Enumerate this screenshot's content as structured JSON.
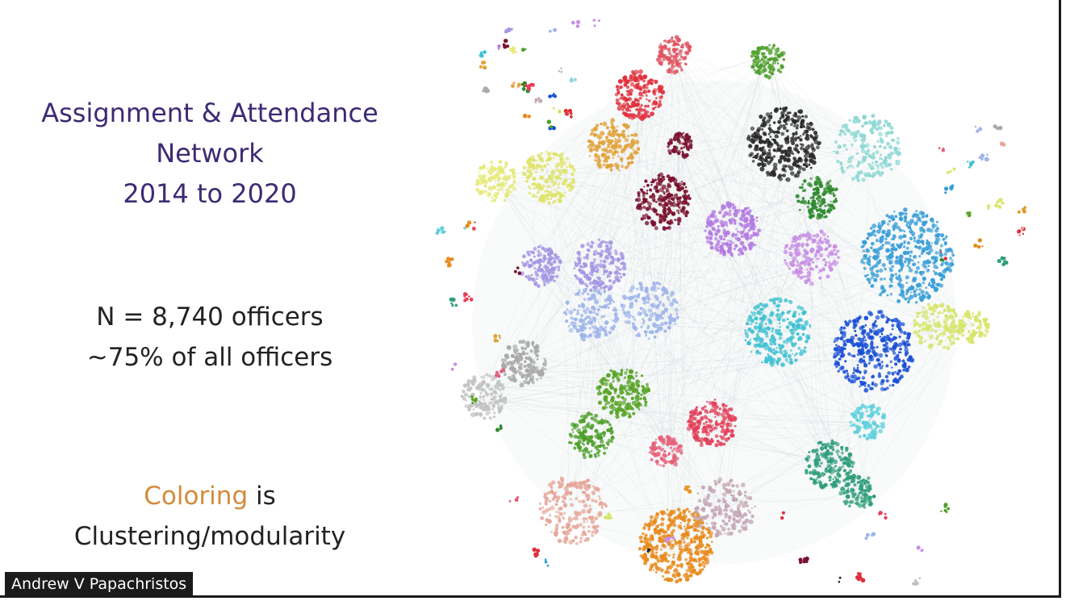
{
  "title": {
    "line1": "Assignment & Attendance",
    "line2": "Network",
    "line3": "2014 to 2020"
  },
  "stats": {
    "line1": "N = 8,740 officers",
    "line2": "~75% of all officers"
  },
  "note": {
    "accent_word": "Coloring",
    "rest_line1": " is",
    "line2": "Clustering/modularity"
  },
  "speaker": {
    "name": "Andrew V Papachristos"
  },
  "colors": {
    "title": "#3d2a73",
    "accent": "#d38a3a",
    "text": "#222222"
  },
  "clusters": [
    {
      "name": "black",
      "color": "#2a2a2a"
    },
    {
      "name": "red",
      "color": "#e0303d"
    },
    {
      "name": "crimson-light",
      "color": "#e05561"
    },
    {
      "name": "orange",
      "color": "#e8972a"
    },
    {
      "name": "gold",
      "color": "#e2a23a"
    },
    {
      "name": "yellow",
      "color": "#dfe36a"
    },
    {
      "name": "yellow-light",
      "color": "#e5ea7a"
    },
    {
      "name": "maroon",
      "color": "#7a1230"
    },
    {
      "name": "violet",
      "color": "#b37be2"
    },
    {
      "name": "lavender",
      "color": "#a596e4"
    },
    {
      "name": "lilac",
      "color": "#c890e5"
    },
    {
      "name": "periwinkle",
      "color": "#9fb5ea"
    },
    {
      "name": "green-dark",
      "color": "#2f8a2f"
    },
    {
      "name": "green",
      "color": "#5aa52a"
    },
    {
      "name": "green-olive",
      "color": "#4e9f2b"
    },
    {
      "name": "teal-light",
      "color": "#8fd8d4"
    },
    {
      "name": "sky",
      "color": "#3a9ed8"
    },
    {
      "name": "cyan",
      "color": "#3fc1d2"
    },
    {
      "name": "blue",
      "color": "#1a4fd6"
    },
    {
      "name": "lime",
      "color": "#d6e56a"
    },
    {
      "name": "grey",
      "color": "#a9a9a9"
    },
    {
      "name": "grey-light",
      "color": "#c2c2c2"
    },
    {
      "name": "pink-red",
      "color": "#e2405a"
    },
    {
      "name": "rose",
      "color": "#e5607a"
    },
    {
      "name": "salmon",
      "color": "#e7a699"
    },
    {
      "name": "mauve",
      "color": "#c5a8b5"
    },
    {
      "name": "orange-bright",
      "color": "#e88b1e"
    },
    {
      "name": "jade",
      "color": "#2e9e7a"
    },
    {
      "name": "aqua",
      "color": "#5fd0dc"
    }
  ]
}
